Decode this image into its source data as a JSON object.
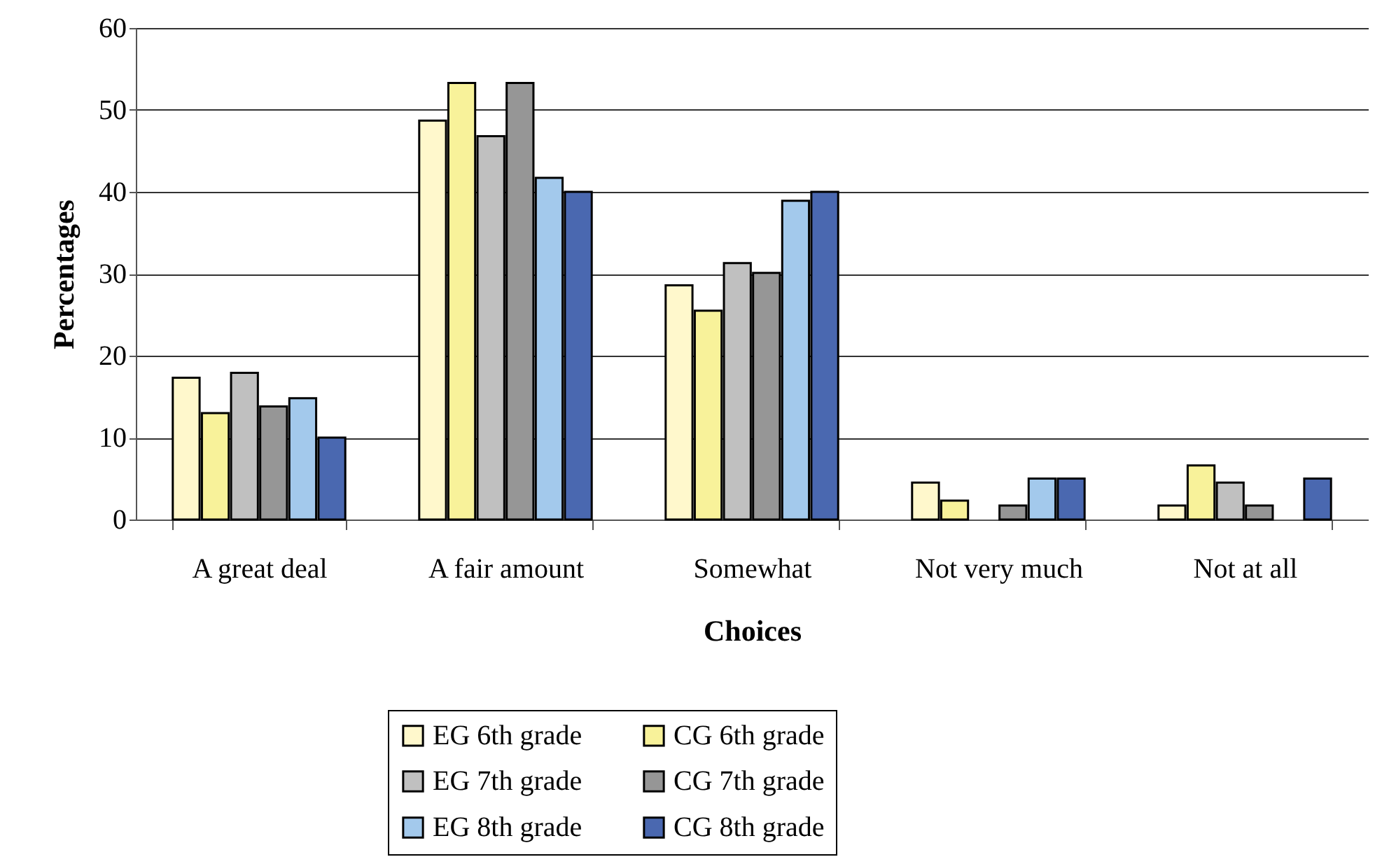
{
  "chart_data": {
    "type": "bar",
    "xlabel": "Choices",
    "ylabel": "Percentages",
    "categories": [
      "A great deal",
      "A fair amount",
      "Somewhat",
      "Not very much",
      "Not at all"
    ],
    "series": [
      {
        "name": "EG 6th grade",
        "color": "#fff8cc",
        "values": [
          17.3,
          48.7,
          28.6,
          4.5,
          1.7
        ]
      },
      {
        "name": "CG 6th grade",
        "color": "#f8f29a",
        "values": [
          13.0,
          53.3,
          25.5,
          2.3,
          6.6
        ]
      },
      {
        "name": "EG 7th grade",
        "color": "#c0c0c0",
        "values": [
          17.9,
          46.8,
          31.3,
          null,
          4.5
        ]
      },
      {
        "name": "CG 7th grade",
        "color": "#969696",
        "values": [
          13.8,
          53.3,
          30.1,
          1.7,
          1.7
        ]
      },
      {
        "name": "EG 8th grade",
        "color": "#a3c9ec",
        "values": [
          14.8,
          41.7,
          38.9,
          5.0,
          null
        ]
      },
      {
        "name": "CG 8th grade",
        "color": "#4a68b0",
        "values": [
          10,
          40,
          40,
          5.0,
          5.0
        ]
      }
    ],
    "ylim": [
      0,
      60
    ],
    "yticks": [
      0,
      10,
      20,
      30,
      40,
      50,
      60
    ],
    "grid": "y",
    "legend": "bottom"
  }
}
